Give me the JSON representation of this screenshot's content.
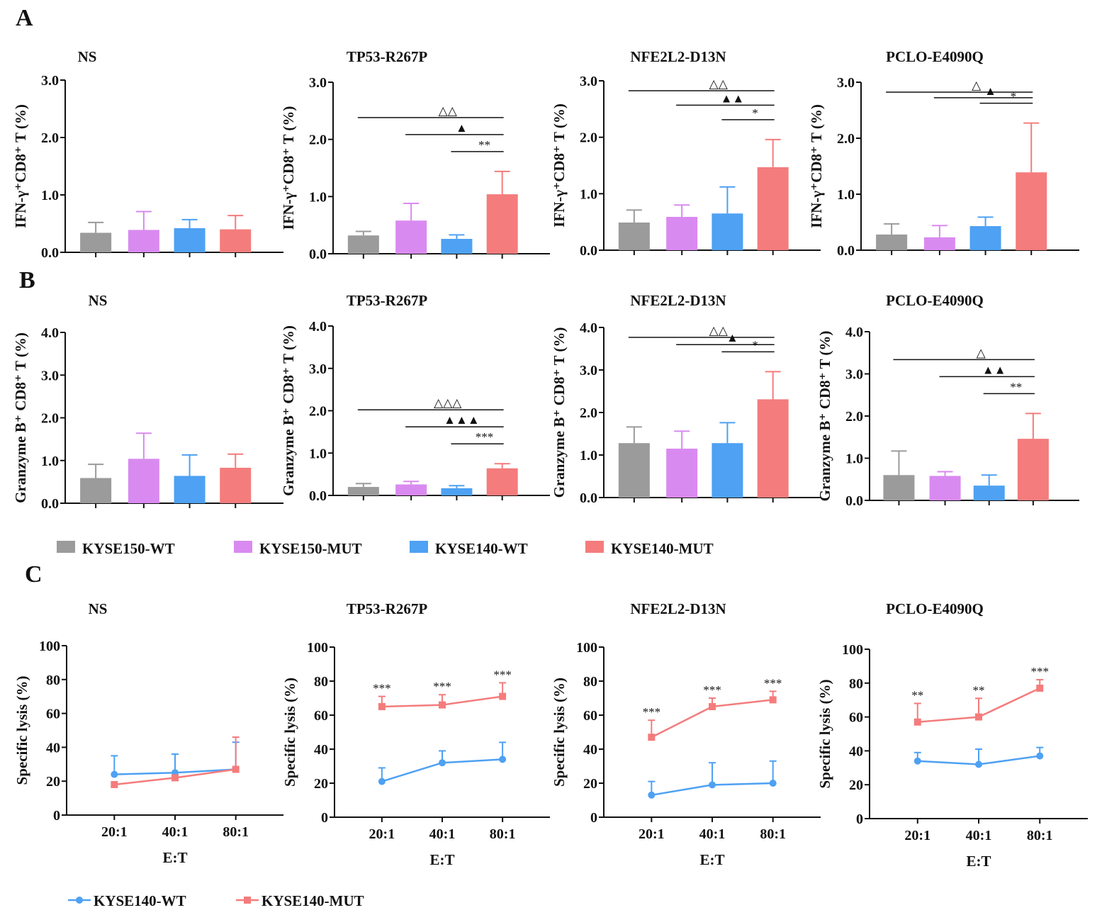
{
  "colors": {
    "KYSE150-WT": "#9b9b9b",
    "KYSE150-MUT": "#d98af0",
    "KYSE140-WT": "#4ea1f3",
    "KYSE140-MUT": "#f47c7c"
  },
  "panel_letters": {
    "A": "A",
    "B": "B",
    "C": "C"
  },
  "legend_bar": [
    "KYSE150-WT",
    "KYSE150-MUT",
    "KYSE140-WT",
    "KYSE140-MUT"
  ],
  "legend_line": [
    "KYSE140-WT",
    "KYSE140-MUT"
  ],
  "chart_data": [
    {
      "panel": "A",
      "type": "bar",
      "title": "NS",
      "ylabel": "IFN-γ⁺CD8⁺ T (%)",
      "ylim": [
        0,
        3.0
      ],
      "yticks": [
        "0.0",
        "1.0",
        "2.0",
        "3.0"
      ],
      "categories": [
        "KYSE150-WT",
        "KYSE150-MUT",
        "KYSE140-WT",
        "KYSE140-MUT"
      ],
      "values": [
        0.34,
        0.39,
        0.42,
        0.4
      ],
      "errors": [
        0.18,
        0.32,
        0.15,
        0.24
      ],
      "sig": []
    },
    {
      "panel": "A",
      "type": "bar",
      "title": "TP53-R267P",
      "ylabel": "IFN-γ⁺CD8⁺ T (%)",
      "ylim": [
        0,
        3.0
      ],
      "yticks": [
        "0.0",
        "1.0",
        "2.0",
        "3.0"
      ],
      "categories": [
        "KYSE150-WT",
        "KYSE150-MUT",
        "KYSE140-WT",
        "KYSE140-MUT"
      ],
      "values": [
        0.32,
        0.58,
        0.26,
        1.04
      ],
      "errors": [
        0.07,
        0.3,
        0.07,
        0.4
      ],
      "sig": [
        {
          "from": 0,
          "to": 3,
          "label": "△△"
        },
        {
          "from": 1,
          "to": 3,
          "label": "▲"
        },
        {
          "from": 2,
          "to": 3,
          "label": "**"
        }
      ]
    },
    {
      "panel": "A",
      "type": "bar",
      "title": "NFE2L2-D13N",
      "ylabel": "IFN-γ⁺CD8⁺ T (%)",
      "ylim": [
        0,
        3.0
      ],
      "yticks": [
        "0.0",
        "1.0",
        "2.0",
        "3.0"
      ],
      "categories": [
        "KYSE150-WT",
        "KYSE150-MUT",
        "KYSE140-WT",
        "KYSE140-MUT"
      ],
      "values": [
        0.49,
        0.59,
        0.65,
        1.47
      ],
      "errors": [
        0.22,
        0.21,
        0.47,
        0.49
      ],
      "sig": [
        {
          "from": 0,
          "to": 3,
          "label": "△△"
        },
        {
          "from": 1,
          "to": 3,
          "label": "▲▲"
        },
        {
          "from": 2,
          "to": 3,
          "label": "*"
        }
      ]
    },
    {
      "panel": "A",
      "type": "bar",
      "title": "PCLO-E4090Q",
      "ylabel": "IFN-γ⁺CD8⁺ T (%)",
      "ylim": [
        0,
        3.0
      ],
      "yticks": [
        "0.0",
        "1.0",
        "2.0",
        "3.0"
      ],
      "categories": [
        "KYSE150-WT",
        "KYSE150-MUT",
        "KYSE140-WT",
        "KYSE140-MUT"
      ],
      "values": [
        0.28,
        0.23,
        0.43,
        1.39
      ],
      "errors": [
        0.19,
        0.21,
        0.16,
        0.88
      ],
      "sig": [
        {
          "from": 0,
          "to": 3,
          "label": "△"
        },
        {
          "from": 1,
          "to": 3,
          "label": "▲"
        },
        {
          "from": 2,
          "to": 3,
          "label": "*"
        }
      ]
    },
    {
      "panel": "B",
      "type": "bar",
      "title": "NS",
      "ylabel": "Granzyme B⁺ CD8⁺ T (%)",
      "ylim": [
        0,
        4.0
      ],
      "yticks": [
        "0.0",
        "1.0",
        "2.0",
        "3.0",
        "4.0"
      ],
      "categories": [
        "KYSE150-WT",
        "KYSE150-MUT",
        "KYSE140-WT",
        "KYSE140-MUT"
      ],
      "values": [
        0.59,
        1.04,
        0.64,
        0.83
      ],
      "errors": [
        0.32,
        0.6,
        0.49,
        0.32
      ],
      "sig": []
    },
    {
      "panel": "B",
      "type": "bar",
      "title": "TP53-R267P",
      "ylabel": "Granzyme B⁺ CD8⁺ T (%)",
      "ylim": [
        0,
        4.0
      ],
      "yticks": [
        "0.0",
        "1.0",
        "2.0",
        "3.0",
        "4.0"
      ],
      "categories": [
        "KYSE150-WT",
        "KYSE150-MUT",
        "KYSE140-WT",
        "KYSE140-MUT"
      ],
      "values": [
        0.2,
        0.26,
        0.17,
        0.64
      ],
      "errors": [
        0.08,
        0.07,
        0.06,
        0.11
      ],
      "sig": [
        {
          "from": 0,
          "to": 3,
          "label": "△△△"
        },
        {
          "from": 1,
          "to": 3,
          "label": "▲▲▲"
        },
        {
          "from": 2,
          "to": 3,
          "label": "***"
        }
      ]
    },
    {
      "panel": "B",
      "type": "bar",
      "title": "NFE2L2-D13N",
      "ylabel": "Granzyme B⁺ CD8⁺ T (%)",
      "ylim": [
        0,
        4.0
      ],
      "yticks": [
        "0.0",
        "1.0",
        "2.0",
        "3.0",
        "4.0"
      ],
      "categories": [
        "KYSE150-WT",
        "KYSE150-MUT",
        "KYSE140-WT",
        "KYSE140-MUT"
      ],
      "values": [
        1.28,
        1.15,
        1.28,
        2.31
      ],
      "errors": [
        0.38,
        0.41,
        0.48,
        0.65
      ],
      "sig": [
        {
          "from": 0,
          "to": 3,
          "label": "△△"
        },
        {
          "from": 1,
          "to": 3,
          "label": "▲"
        },
        {
          "from": 2,
          "to": 3,
          "label": "*"
        }
      ]
    },
    {
      "panel": "B",
      "type": "bar",
      "title": "PCLO-E4090Q",
      "ylabel": "Granzyme B⁺ CD8⁺ T (%)",
      "ylim": [
        0,
        4.0
      ],
      "yticks": [
        "0.0",
        "1.0",
        "2.0",
        "3.0",
        "4.0"
      ],
      "categories": [
        "KYSE150-WT",
        "KYSE150-MUT",
        "KYSE140-WT",
        "KYSE140-MUT"
      ],
      "values": [
        0.6,
        0.58,
        0.35,
        1.46
      ],
      "errors": [
        0.57,
        0.1,
        0.25,
        0.6
      ],
      "sig": [
        {
          "from": 0,
          "to": 3,
          "label": "△"
        },
        {
          "from": 1,
          "to": 3,
          "label": "▲▲"
        },
        {
          "from": 2,
          "to": 3,
          "label": "**"
        }
      ]
    },
    {
      "panel": "C",
      "type": "line",
      "title": "NS",
      "ylabel": "Specific lysis (%)",
      "xlabel": "E:T",
      "ylim": [
        0,
        100
      ],
      "yticks": [
        "0",
        "20",
        "40",
        "60",
        "80",
        "100"
      ],
      "categories": [
        "20:1",
        "40:1",
        "80:1"
      ],
      "series": [
        {
          "name": "KYSE140-WT",
          "values": [
            24,
            25,
            27
          ],
          "errors": [
            11,
            11,
            16
          ]
        },
        {
          "name": "KYSE140-MUT",
          "values": [
            18,
            22,
            27
          ],
          "errors": [
            0,
            0,
            19
          ]
        }
      ],
      "sig": [
        "",
        "",
        ""
      ]
    },
    {
      "panel": "C",
      "type": "line",
      "title": "TP53-R267P",
      "ylabel": "Specific lysis (%)",
      "xlabel": "E:T",
      "ylim": [
        0,
        100
      ],
      "yticks": [
        "0",
        "20",
        "40",
        "60",
        "80",
        "100"
      ],
      "categories": [
        "20:1",
        "40:1",
        "80:1"
      ],
      "series": [
        {
          "name": "KYSE140-WT",
          "values": [
            21,
            32,
            34
          ],
          "errors": [
            8,
            7,
            10
          ]
        },
        {
          "name": "KYSE140-MUT",
          "values": [
            65,
            66,
            71
          ],
          "errors": [
            6,
            6,
            8
          ]
        }
      ],
      "sig": [
        "***",
        "***",
        "***"
      ]
    },
    {
      "panel": "C",
      "type": "line",
      "title": "NFE2L2-D13N",
      "ylabel": "Specific lysis (%)",
      "xlabel": "E:T",
      "ylim": [
        0,
        100
      ],
      "yticks": [
        "0",
        "20",
        "40",
        "60",
        "80",
        "100"
      ],
      "categories": [
        "20:1",
        "40:1",
        "80:1"
      ],
      "series": [
        {
          "name": "KYSE140-WT",
          "values": [
            13,
            19,
            20
          ],
          "errors": [
            8,
            13,
            13
          ]
        },
        {
          "name": "KYSE140-MUT",
          "values": [
            47,
            65,
            69
          ],
          "errors": [
            10,
            5,
            5
          ]
        }
      ],
      "sig": [
        "***",
        "***",
        "***"
      ]
    },
    {
      "panel": "C",
      "type": "line",
      "title": "PCLO-E4090Q",
      "ylabel": "Specific lysis (%)",
      "xlabel": "E:T",
      "ylim": [
        0,
        100
      ],
      "yticks": [
        "0",
        "20",
        "40",
        "60",
        "80",
        "100"
      ],
      "categories": [
        "20:1",
        "40:1",
        "80:1"
      ],
      "series": [
        {
          "name": "KYSE140-WT",
          "values": [
            34,
            32,
            37
          ],
          "errors": [
            5,
            9,
            5
          ]
        },
        {
          "name": "KYSE140-MUT",
          "values": [
            57,
            60,
            77
          ],
          "errors": [
            11,
            11,
            5
          ]
        }
      ],
      "sig": [
        "**",
        "**",
        "***"
      ]
    }
  ]
}
